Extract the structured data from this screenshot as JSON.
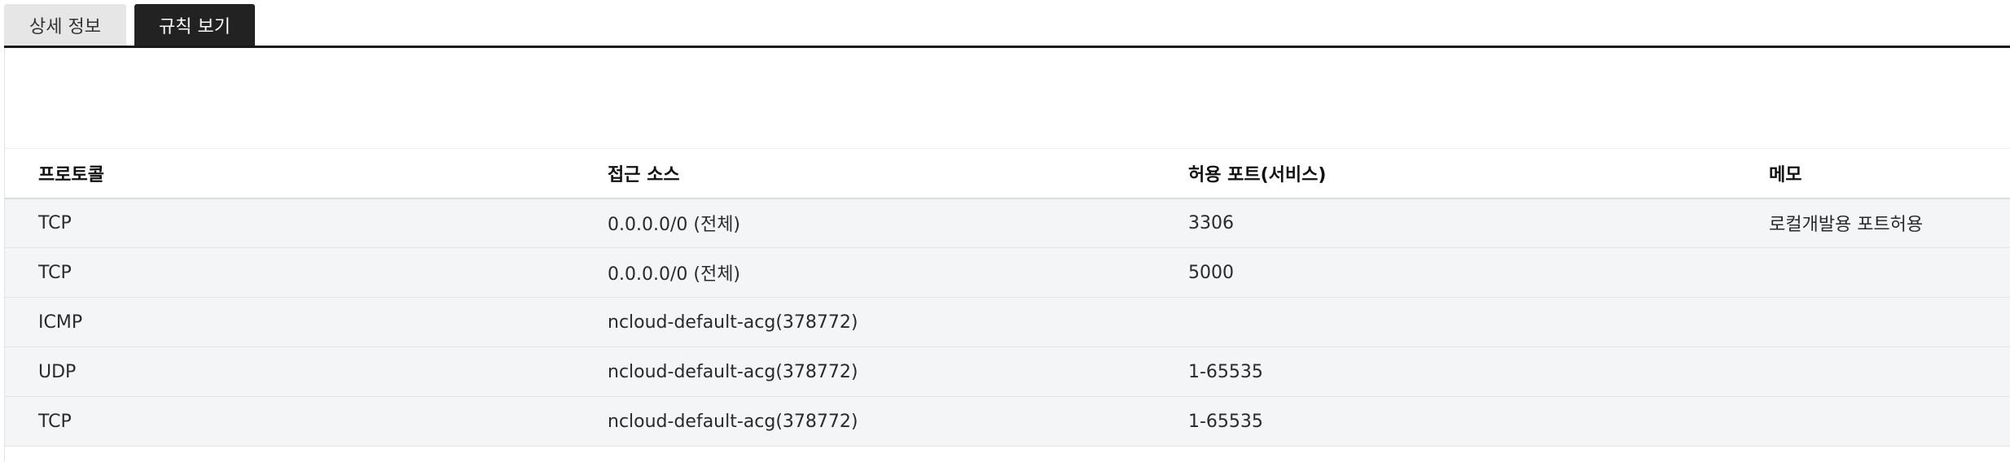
{
  "tabs": [
    {
      "label": "상세 정보",
      "active": false
    },
    {
      "label": "규칙 보기",
      "active": true
    }
  ],
  "table": {
    "columns": [
      "프로토콜",
      "접근 소스",
      "허용 포트(서비스)",
      "메모"
    ],
    "rows": [
      {
        "protocol": "TCP",
        "source": "0.0.0.0/0 (전체)",
        "port": "3306",
        "memo": "로컬개발용 포트허용"
      },
      {
        "protocol": "TCP",
        "source": "0.0.0.0/0 (전체)",
        "port": "5000",
        "memo": ""
      },
      {
        "protocol": "ICMP",
        "source": "ncloud-default-acg(378772)",
        "port": "",
        "memo": ""
      },
      {
        "protocol": "UDP",
        "source": "ncloud-default-acg(378772)",
        "port": "1-65535",
        "memo": ""
      },
      {
        "protocol": "TCP",
        "source": "ncloud-default-acg(378772)",
        "port": "1-65535",
        "memo": ""
      }
    ]
  },
  "colors": {
    "active_tab_bg": "#222222",
    "inactive_tab_bg": "#e6e6e6",
    "row_bg": "#f4f5f7"
  }
}
